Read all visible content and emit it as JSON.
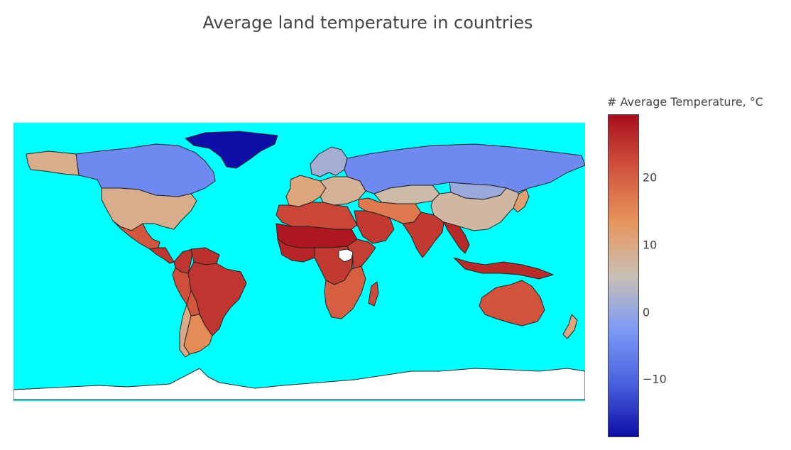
{
  "title": "Average land temperature in countries",
  "colorbar": {
    "title": "# Average Temperature, °C",
    "ticks": [
      "20",
      "10",
      "0",
      "−10"
    ],
    "tick_values": [
      20,
      10,
      0,
      -10
    ],
    "range": [
      -18.6,
      29.4
    ],
    "colorscale": [
      "#0d0ea6",
      "#4a62e0",
      "#7d9af5",
      "#c9c0b4",
      "#e7955c",
      "#d2543e",
      "#a80f1c"
    ]
  },
  "map": {
    "ocean_color": "#00ffff",
    "land_color": "#ffffff",
    "border_color": "#222222",
    "no_data_color": "#ffffff"
  },
  "regions": [
    {
      "name": "Greenland",
      "value": -18.5
    },
    {
      "name": "Canada",
      "value": -5.0
    },
    {
      "name": "Alaska",
      "value": 9.0
    },
    {
      "name": "United States",
      "value": 9.0
    },
    {
      "name": "Mexico",
      "value": 21.0
    },
    {
      "name": "Central America",
      "value": 25.0
    },
    {
      "name": "Colombia",
      "value": 25.0
    },
    {
      "name": "Venezuela",
      "value": 25.5
    },
    {
      "name": "Brazil",
      "value": 25.0
    },
    {
      "name": "Peru",
      "value": 22.0
    },
    {
      "name": "Bolivia",
      "value": 21.0
    },
    {
      "name": "Argentina",
      "value": 14.5
    },
    {
      "name": "Chile",
      "value": 9.5
    },
    {
      "name": "Scandinavia",
      "value": 1.5
    },
    {
      "name": "Western Europe",
      "value": 10.5
    },
    {
      "name": "Eastern Europe",
      "value": 8.0
    },
    {
      "name": "Russia",
      "value": -5.0
    },
    {
      "name": "Kazakhstan",
      "value": 6.5
    },
    {
      "name": "Mongolia",
      "value": 0.5
    },
    {
      "name": "China",
      "value": 7.0
    },
    {
      "name": "Middle East",
      "value": 17.0
    },
    {
      "name": "Saudi Arabia",
      "value": 24.5
    },
    {
      "name": "India",
      "value": 24.5
    },
    {
      "name": "Southeast Asia",
      "value": 26.5
    },
    {
      "name": "Japan",
      "value": 11.5
    },
    {
      "name": "North Africa",
      "value": 23.0
    },
    {
      "name": "Sahel",
      "value": 28.5
    },
    {
      "name": "West Africa",
      "value": 27.0
    },
    {
      "name": "Central Africa",
      "value": 24.5
    },
    {
      "name": "East Africa",
      "value": 24.0
    },
    {
      "name": "Southern Africa",
      "value": 20.0
    },
    {
      "name": "Madagascar",
      "value": 22.5
    },
    {
      "name": "Indonesia",
      "value": 26.0
    },
    {
      "name": "Australia",
      "value": 21.5
    },
    {
      "name": "New Zealand",
      "value": 10.5
    },
    {
      "name": "Antarctica",
      "value": null
    },
    {
      "name": "South Sudan",
      "value": null
    }
  ]
}
